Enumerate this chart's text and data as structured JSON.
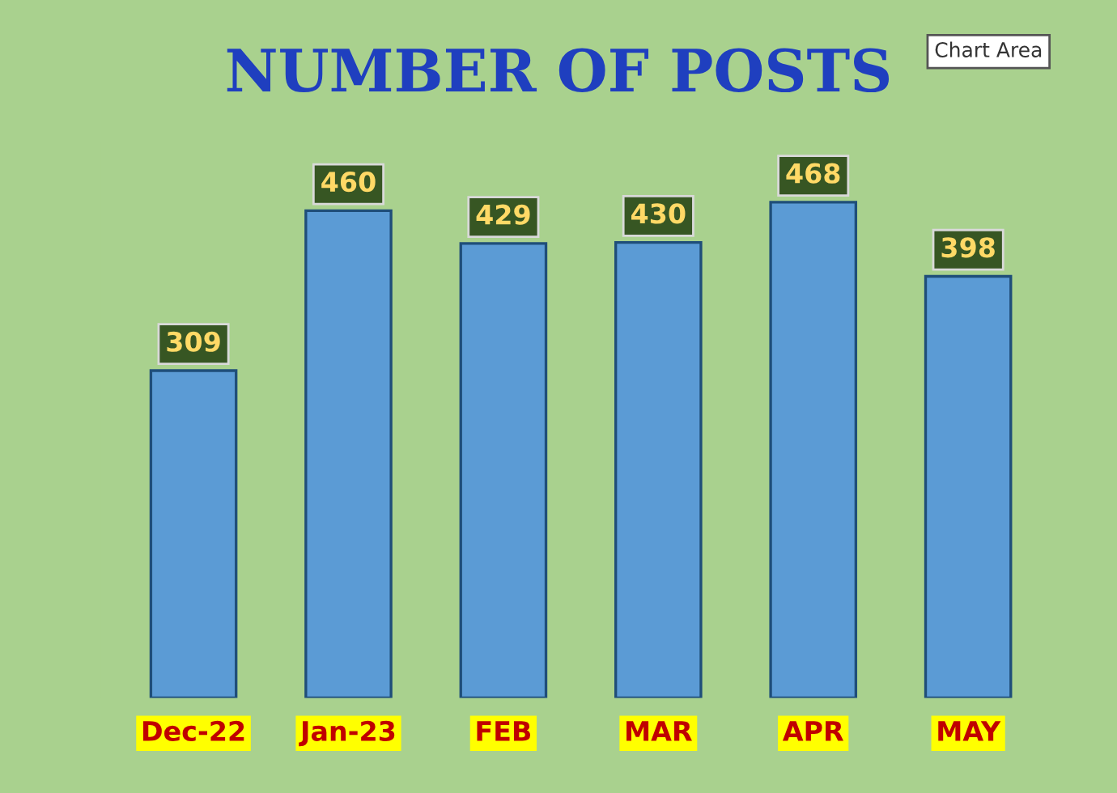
{
  "chart_data": {
    "type": "bar",
    "title": "NUMBER OF POSTS",
    "categories": [
      "Dec-22",
      "Jan-23",
      "FEB",
      "MAR",
      "APR",
      "MAY"
    ],
    "values": [
      309,
      460,
      429,
      430,
      468,
      398
    ],
    "color": "#5b9bd5",
    "data_labels": true,
    "grid": false,
    "annotations": [
      "Chart Area"
    ]
  }
}
